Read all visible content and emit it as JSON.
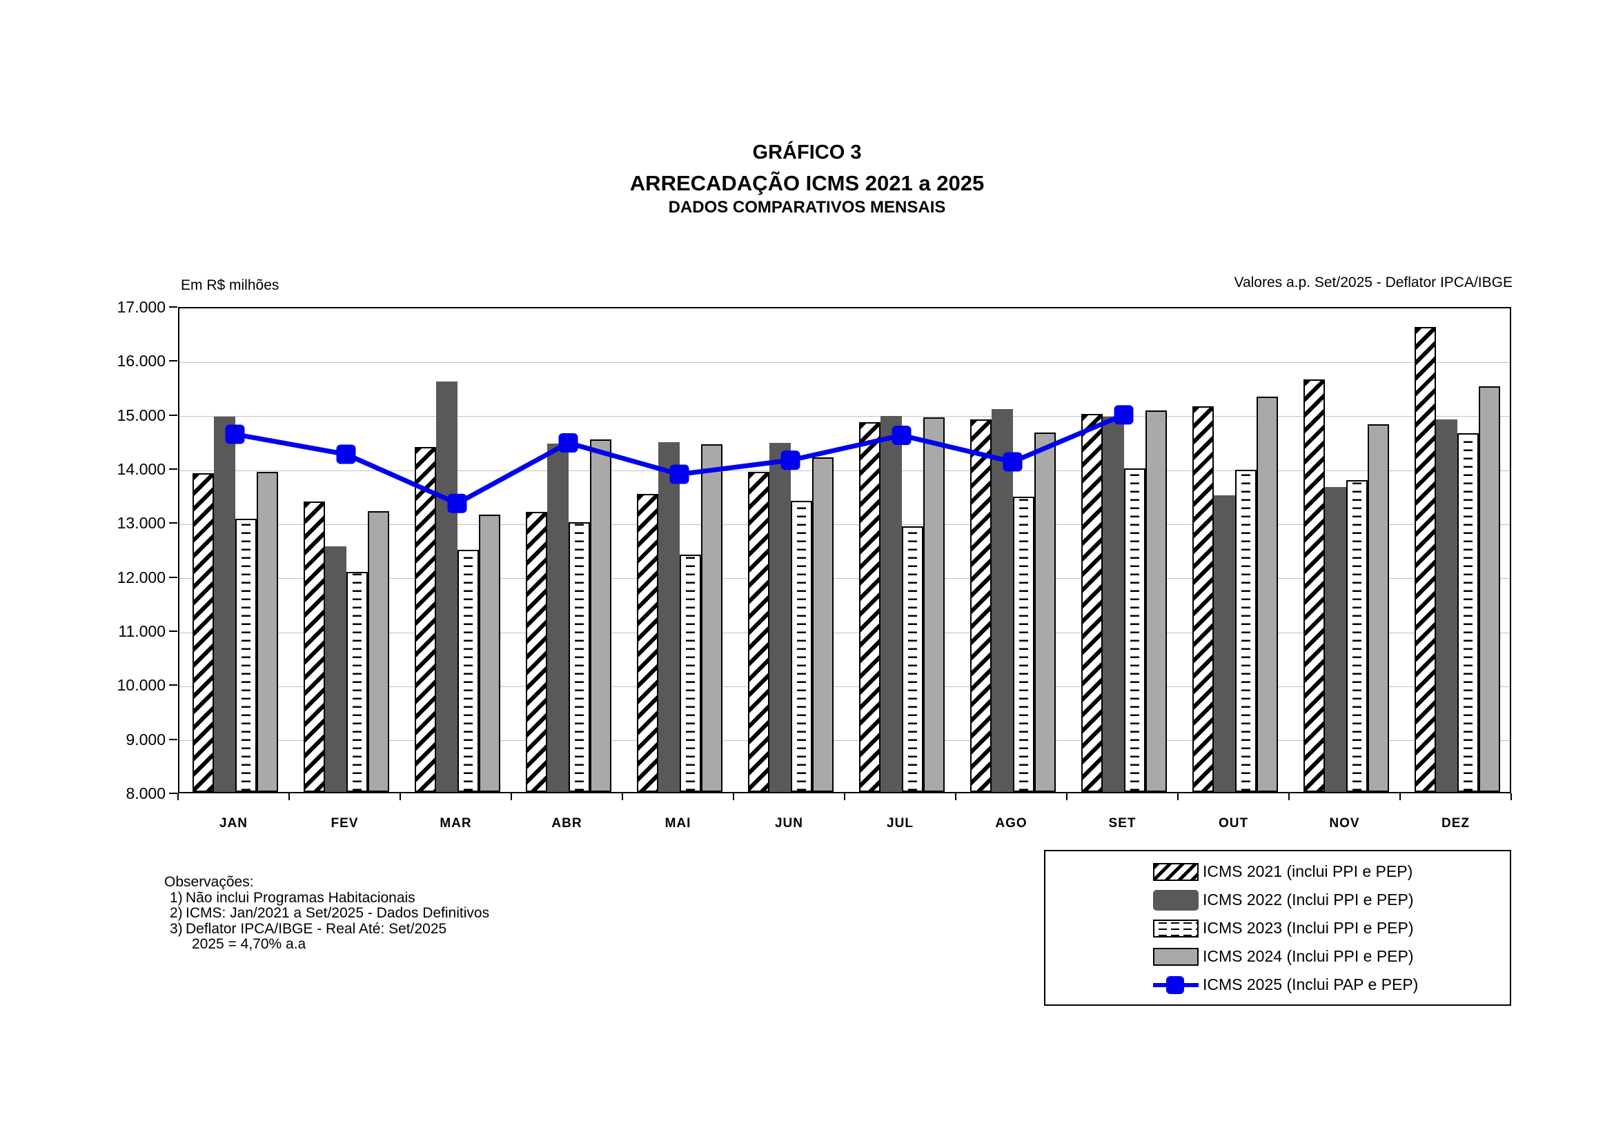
{
  "header": {
    "kicker": "GRÁFICO 3",
    "title": "ARRECADAÇÃO ICMS 2021 a 2025",
    "subtitle": "DADOS COMPARATIVOS MENSAIS"
  },
  "notes": {
    "left": "Em R$ milhões",
    "right": "Valores a.p. Set/2025 - Deflator IPCA/IBGE"
  },
  "observations": {
    "heading": "Observações:",
    "items": [
      {
        "num": "1)",
        "text": "Não inclui Programas Habitacionais"
      },
      {
        "num": "2)",
        "text": "ICMS: Jan/2021 a Set/2025 - Dados Definitivos"
      },
      {
        "num": "3)",
        "text": "Deflator IPCA/IBGE - Real Até: Set/2025"
      }
    ],
    "continuation": "2025 = 4,70% a.a"
  },
  "legend": {
    "entries": [
      {
        "label": "ICMS 2021 (inclui PPI e PEP)",
        "swatch": "hatch"
      },
      {
        "label": "ICMS 2022 (Inclui PPI e PEP)",
        "swatch": "dark"
      },
      {
        "label": "ICMS 2023 (Inclui PPI e PEP)",
        "swatch": "dash"
      },
      {
        "label": "ICMS 2024 (Inclui PPI e PEP)",
        "swatch": "light"
      },
      {
        "label": "ICMS 2025 (Inclui PAP e PEP)",
        "swatch": "line"
      }
    ]
  },
  "colors": {
    "bar_dark": "#595959",
    "bar_light": "#A9A9A9",
    "line_blue": "#0000EE",
    "grid": "#C0C0C0",
    "axis": "#000000"
  },
  "chart_data": {
    "type": "bar+line",
    "unit": "Em R$ milhões",
    "categories": [
      "JAN",
      "FEV",
      "MAR",
      "ABR",
      "MAI",
      "JUN",
      "JUL",
      "AGO",
      "SET",
      "OUT",
      "NOV",
      "DEZ"
    ],
    "series": [
      {
        "name": "ICMS 2021 (inclui PPI e PEP)",
        "kind": "bar",
        "style": "hatch",
        "values": [
          13900,
          13370,
          14380,
          13180,
          13520,
          13920,
          14840,
          14900,
          14990,
          15130,
          15630,
          16610
        ]
      },
      {
        "name": "ICMS 2022 (Inclui PPI e PEP)",
        "kind": "bar",
        "style": "dark",
        "values": [
          14950,
          12550,
          15600,
          14450,
          14470,
          14460,
          14960,
          15080,
          14950,
          13490,
          13640,
          14900
        ]
      },
      {
        "name": "ICMS 2023 (Inclui PPI e PEP)",
        "kind": "bar",
        "style": "dash",
        "values": [
          13050,
          12070,
          12480,
          12990,
          12390,
          13390,
          12910,
          13470,
          13990,
          13960,
          13770,
          14640
        ]
      },
      {
        "name": "ICMS 2024 (Inclui PPI e PEP)",
        "kind": "bar",
        "style": "light",
        "values": [
          13920,
          13190,
          13130,
          14520,
          14440,
          14190,
          14930,
          14650,
          15060,
          15310,
          14800,
          15510
        ]
      },
      {
        "name": "ICMS 2025 (Inclui PAP e PEP)",
        "kind": "line",
        "style": "line",
        "values": [
          14670,
          14300,
          13390,
          14510,
          13930,
          14190,
          14650,
          14160,
          15030,
          null,
          null,
          null
        ]
      }
    ],
    "ylim": [
      8000,
      17000
    ],
    "ytick_step": 1000,
    "ytick_labels": [
      "17.000",
      "16.000",
      "15.000",
      "14.000",
      "13.000",
      "12.000",
      "11.000",
      "10.000",
      "9.000",
      "8.000"
    ],
    "grid": true,
    "legend_position": "bottom-right"
  }
}
